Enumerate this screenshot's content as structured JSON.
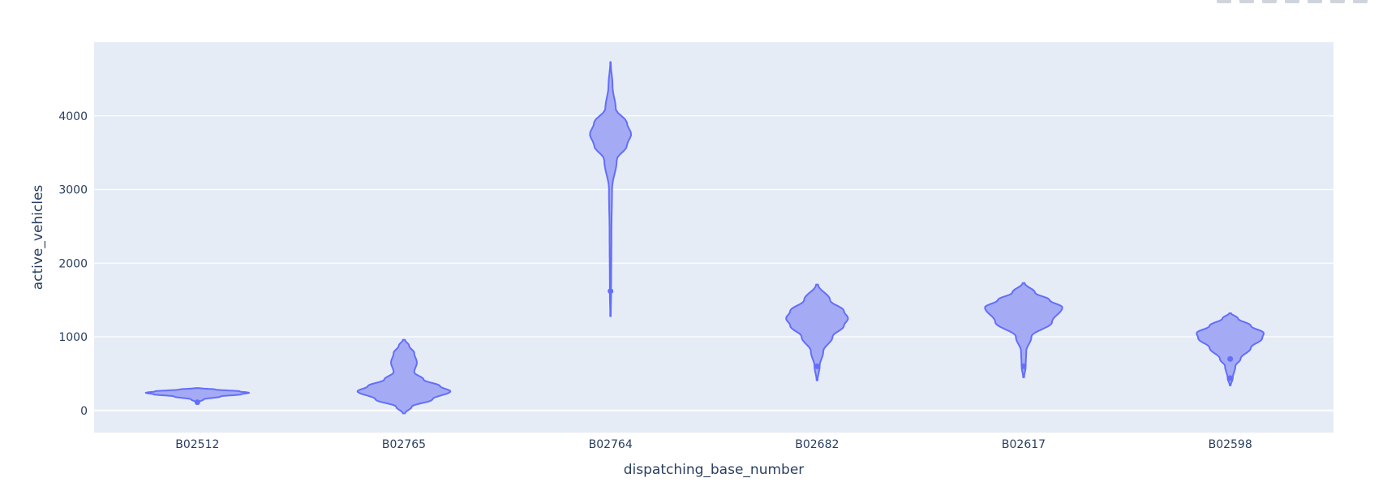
{
  "chart_data": {
    "type": "violin",
    "title": "",
    "xlabel": "dispatching_base_number",
    "ylabel": "active_vehicles",
    "categories": [
      "B02512",
      "B02765",
      "B02764",
      "B02682",
      "B02617",
      "B02598"
    ],
    "ylim": [
      -300,
      5000
    ],
    "yticks": [
      0,
      1000,
      2000,
      3000,
      4000
    ],
    "grid": true,
    "colors": {
      "plot_bg": "#e5ecf6",
      "fill": "#a4abf4",
      "line": "#636efa",
      "grid": "#ffffff",
      "text": "#2a3f5f"
    },
    "series": [
      {
        "category": "B02512",
        "min": 112,
        "max": 305,
        "profile": [
          [
            112,
            0.02
          ],
          [
            150,
            0.12
          ],
          [
            190,
            0.45
          ],
          [
            220,
            0.85
          ],
          [
            240,
            1.0
          ],
          [
            260,
            0.82
          ],
          [
            285,
            0.35
          ],
          [
            305,
            0.03
          ]
        ],
        "outliers": [
          112
        ]
      },
      {
        "category": "B02765",
        "min": -40,
        "max": 960,
        "profile": [
          [
            -40,
            0.02
          ],
          [
            50,
            0.15
          ],
          [
            150,
            0.55
          ],
          [
            260,
            0.9
          ],
          [
            330,
            0.7
          ],
          [
            420,
            0.38
          ],
          [
            520,
            0.2
          ],
          [
            650,
            0.25
          ],
          [
            780,
            0.2
          ],
          [
            880,
            0.1
          ],
          [
            960,
            0.02
          ]
        ],
        "outliers": []
      },
      {
        "category": "B02764",
        "min": 1280,
        "max": 4730,
        "profile": [
          [
            1280,
            0.005
          ],
          [
            1600,
            0.012
          ],
          [
            2400,
            0.018
          ],
          [
            3000,
            0.03
          ],
          [
            3400,
            0.12
          ],
          [
            3600,
            0.32
          ],
          [
            3750,
            0.4
          ],
          [
            3900,
            0.32
          ],
          [
            4100,
            0.1
          ],
          [
            4400,
            0.04
          ],
          [
            4730,
            0.005
          ]
        ],
        "outliers": [
          1620
        ]
      },
      {
        "category": "B02682",
        "min": 410,
        "max": 1710,
        "profile": [
          [
            410,
            0.01
          ],
          [
            600,
            0.05
          ],
          [
            800,
            0.12
          ],
          [
            1000,
            0.3
          ],
          [
            1150,
            0.52
          ],
          [
            1250,
            0.6
          ],
          [
            1350,
            0.52
          ],
          [
            1500,
            0.25
          ],
          [
            1710,
            0.02
          ]
        ],
        "outliers": [
          600
        ]
      },
      {
        "category": "B02617",
        "min": 450,
        "max": 1730,
        "profile": [
          [
            450,
            0.01
          ],
          [
            600,
            0.04
          ],
          [
            800,
            0.05
          ],
          [
            1000,
            0.15
          ],
          [
            1200,
            0.55
          ],
          [
            1400,
            0.75
          ],
          [
            1500,
            0.5
          ],
          [
            1600,
            0.22
          ],
          [
            1730,
            0.02
          ]
        ],
        "outliers": [
          600
        ]
      },
      {
        "category": "B02598",
        "min": 340,
        "max": 1320,
        "profile": [
          [
            340,
            0.01
          ],
          [
            440,
            0.05
          ],
          [
            600,
            0.1
          ],
          [
            700,
            0.2
          ],
          [
            850,
            0.4
          ],
          [
            980,
            0.62
          ],
          [
            1050,
            0.65
          ],
          [
            1150,
            0.4
          ],
          [
            1250,
            0.15
          ],
          [
            1320,
            0.02
          ]
        ],
        "outliers": [
          440,
          700
        ]
      }
    ]
  }
}
